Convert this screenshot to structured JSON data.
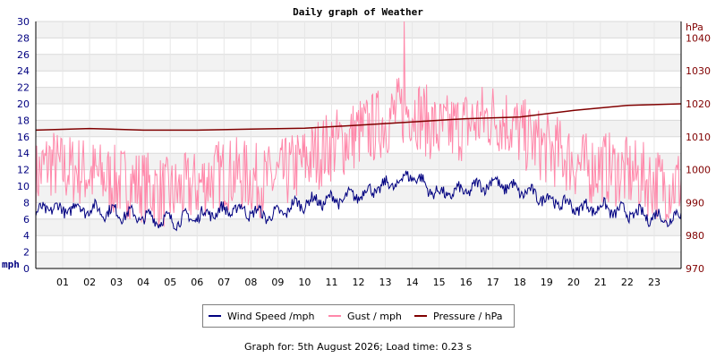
{
  "chart_data": {
    "type": "line",
    "title": "Daily graph of Weather",
    "y_left": {
      "unit": "mph",
      "lim": [
        0,
        30
      ],
      "ticks": [
        0,
        2,
        4,
        6,
        8,
        10,
        12,
        14,
        16,
        18,
        20,
        22,
        24,
        26,
        28,
        30
      ]
    },
    "y_right": {
      "unit": "hPa",
      "lim": [
        970,
        1045
      ],
      "ticks": [
        970,
        980,
        990,
        1000,
        1010,
        1020,
        1030,
        1040
      ]
    },
    "x_ticks": [
      "01",
      "02",
      "03",
      "04",
      "05",
      "06",
      "07",
      "08",
      "09",
      "10",
      "11",
      "12",
      "13",
      "14",
      "15",
      "16",
      "17",
      "18",
      "19",
      "20",
      "21",
      "22",
      "23"
    ],
    "grid": true,
    "legend_position": "bottom",
    "series": [
      {
        "name": "Wind Speed /mph",
        "axis": "left",
        "color": "#000080",
        "hours": [
          0,
          0.5,
          1,
          1.5,
          2,
          2.5,
          3,
          3.5,
          4,
          4.5,
          5,
          5.5,
          6,
          6.5,
          7,
          7.5,
          8,
          8.5,
          9,
          9.5,
          10,
          10.5,
          11,
          11.5,
          12,
          12.5,
          13,
          13.5,
          14,
          14.5,
          15,
          15.5,
          16,
          16.5,
          17,
          17.5,
          18,
          18.5,
          19,
          19.5,
          20,
          20.5,
          21,
          21.5,
          22,
          22.5,
          23,
          23.5,
          24
        ],
        "values": [
          6.5,
          7.5,
          7.0,
          7.5,
          7.2,
          7.0,
          6.8,
          6.5,
          6.2,
          6.0,
          5.8,
          6.0,
          6.3,
          6.8,
          7.0,
          7.2,
          6.9,
          6.5,
          6.5,
          7.5,
          8.0,
          8.2,
          8.3,
          8.5,
          9.0,
          9.5,
          10.0,
          10.5,
          11.5,
          10.0,
          9.0,
          9.2,
          9.5,
          10.0,
          10.5,
          10.0,
          9.5,
          9.0,
          8.5,
          8.0,
          7.5,
          7.3,
          7.5,
          7.0,
          6.8,
          6.5,
          6.3,
          6.0,
          6.5
        ]
      },
      {
        "name": "Gust / mph",
        "axis": "left",
        "color": "#ff88aa",
        "hours": [
          0,
          0.5,
          1,
          1.5,
          2,
          2.5,
          3,
          3.5,
          4,
          4.5,
          5,
          5.5,
          6,
          6.5,
          7,
          7.5,
          8,
          8.5,
          9,
          9.5,
          10,
          10.5,
          11,
          11.5,
          12,
          12.5,
          13,
          13.5,
          14,
          14.5,
          15,
          15.5,
          16,
          16.5,
          17,
          17.5,
          18,
          18.5,
          19,
          19.5,
          20,
          20.5,
          21,
          21.5,
          22,
          22.5,
          23,
          23.5,
          24
        ],
        "values": [
          11,
          13,
          12,
          12,
          11.5,
          11,
          10.5,
          10.5,
          10,
          9.5,
          9,
          9.5,
          10,
          11,
          11.5,
          11.5,
          11,
          10.5,
          11,
          12,
          13,
          14,
          15,
          15.5,
          16.5,
          17,
          18,
          19,
          19.5,
          18,
          16.5,
          17,
          17.5,
          18,
          18.5,
          18,
          16.5,
          15.5,
          14.5,
          14,
          13,
          12,
          12.5,
          12,
          11.5,
          11,
          10.5,
          10,
          10.5
        ],
        "max": 30
      },
      {
        "name": "Pressure / hPa",
        "axis": "right",
        "color": "#800000",
        "hours": [
          0,
          2,
          4,
          6,
          8,
          10,
          12,
          14,
          16,
          18,
          20,
          22,
          24
        ],
        "values": [
          1012,
          1012.5,
          1012,
          1012,
          1012.3,
          1012.6,
          1013.5,
          1014.5,
          1015.5,
          1016,
          1018,
          1019.5,
          1020
        ]
      }
    ]
  },
  "footer": {
    "text": "Graph for: 5th August 2026; Load time: 0.23 s"
  }
}
